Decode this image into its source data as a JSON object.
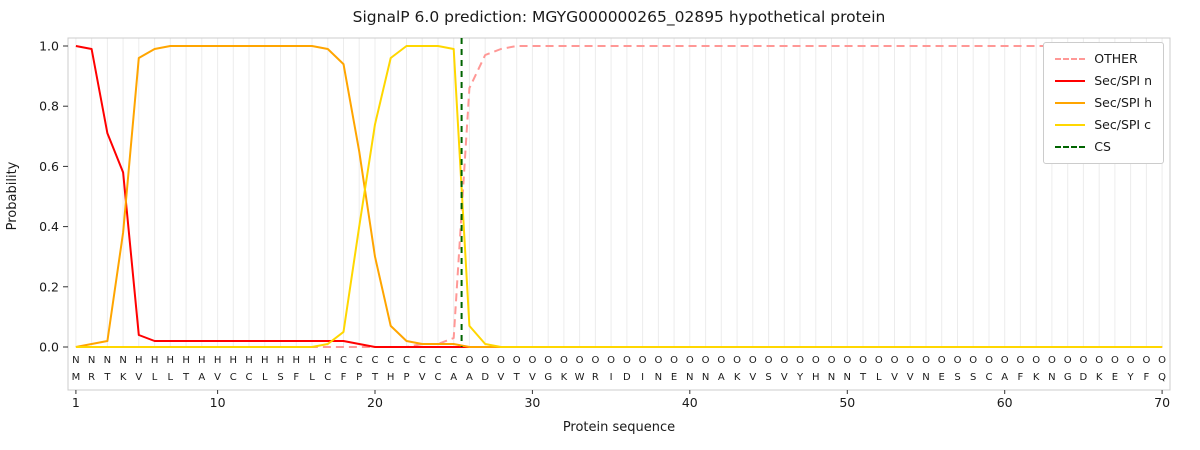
{
  "chart_data": {
    "type": "line",
    "title": "SignalP 6.0 prediction: MGYG000000265_02895 hypothetical protein",
    "xlabel": "Protein sequence",
    "ylabel": "Probability",
    "xlim": [
      0.5,
      70.5
    ],
    "ylim": [
      -0.15,
      1.05
    ],
    "x_start": 1,
    "x_ticks": [
      1,
      10,
      20,
      30,
      40,
      50,
      60,
      70
    ],
    "y_ticks": [
      0.0,
      0.2,
      0.4,
      0.6,
      0.8,
      1.0
    ],
    "grid": "vertical-line-per-residue",
    "legend_position": "upper right",
    "series": [
      {
        "name": "OTHER",
        "color": "#ff9896",
        "dashed": true,
        "values": [
          0,
          0,
          0,
          0,
          0,
          0,
          0,
          0,
          0,
          0,
          0,
          0,
          0,
          0,
          0,
          0,
          0,
          0,
          0,
          0,
          0,
          0,
          0.01,
          0.01,
          0.03,
          0.86,
          0.97,
          0.99,
          1,
          1,
          1,
          1,
          1,
          1,
          1,
          1,
          1,
          1,
          1,
          1,
          1,
          1,
          1,
          1,
          1,
          1,
          1,
          1,
          1,
          1,
          1,
          1,
          1,
          1,
          1,
          1,
          1,
          1,
          1,
          1,
          1,
          1,
          1,
          1,
          1,
          1,
          1,
          1,
          1,
          1
        ]
      },
      {
        "name": "Sec/SPI n",
        "color": "#ff0000",
        "dashed": false,
        "values": [
          1,
          0.99,
          0.71,
          0.58,
          0.04,
          0.02,
          0.02,
          0.02,
          0.02,
          0.02,
          0.02,
          0.02,
          0.02,
          0.02,
          0.02,
          0.02,
          0.02,
          0.02,
          0.01,
          0,
          0,
          0,
          0,
          0,
          0,
          0,
          0,
          0,
          0,
          0,
          0,
          0,
          0,
          0,
          0,
          0,
          0,
          0,
          0,
          0,
          0,
          0,
          0,
          0,
          0,
          0,
          0,
          0,
          0,
          0,
          0,
          0,
          0,
          0,
          0,
          0,
          0,
          0,
          0,
          0,
          0,
          0,
          0,
          0,
          0,
          0,
          0,
          0,
          0,
          0
        ]
      },
      {
        "name": "Sec/SPI h",
        "color": "#ffa500",
        "dashed": false,
        "values": [
          0,
          0.01,
          0.02,
          0.38,
          0.96,
          0.99,
          1,
          1,
          1,
          1,
          1,
          1,
          1,
          1,
          1,
          1,
          0.99,
          0.94,
          0.65,
          0.3,
          0.07,
          0.02,
          0.01,
          0.01,
          0.01,
          0,
          0,
          0,
          0,
          0,
          0,
          0,
          0,
          0,
          0,
          0,
          0,
          0,
          0,
          0,
          0,
          0,
          0,
          0,
          0,
          0,
          0,
          0,
          0,
          0,
          0,
          0,
          0,
          0,
          0,
          0,
          0,
          0,
          0,
          0,
          0,
          0,
          0,
          0,
          0,
          0,
          0,
          0,
          0,
          0
        ]
      },
      {
        "name": "Sec/SPI c",
        "color": "#ffd700",
        "dashed": false,
        "values": [
          0,
          0,
          0,
          0,
          0,
          0,
          0,
          0,
          0,
          0,
          0,
          0,
          0,
          0,
          0,
          0,
          0.01,
          0.05,
          0.4,
          0.74,
          0.96,
          1,
          1,
          1,
          0.99,
          0.07,
          0.01,
          0,
          0,
          0,
          0,
          0,
          0,
          0,
          0,
          0,
          0,
          0,
          0,
          0,
          0,
          0,
          0,
          0,
          0,
          0,
          0,
          0,
          0,
          0,
          0,
          0,
          0,
          0,
          0,
          0,
          0,
          0,
          0,
          0,
          0,
          0,
          0,
          0,
          0,
          0,
          0,
          0,
          0,
          0
        ]
      }
    ],
    "cs_marker": {
      "name": "CS",
      "position": 25.5,
      "color": "#006400",
      "dashed": true
    },
    "sequence": "MRTKVLLTAVCCLSFLCFPTHPVCAADVTVGKWRIDINENNAKVSVYHNNTLVVNESSCAFKNGDKEYFQ",
    "region_labels": "NNNNHHHHHHHHHHHHHCCCCCCCCOOOOOOOOOOOOOOOOOOOOOOOOOOOOOOOOOOOOOOOOOOOOO",
    "label_colors": {
      "N": "#ff0000",
      "H": "#ffa500",
      "C": "#ffd700",
      "O": "#a0a0a0"
    },
    "colors": {
      "grid": "#ececec",
      "frame": "#cccccc",
      "tick": "#333333",
      "sequence_text": "#000000"
    }
  }
}
